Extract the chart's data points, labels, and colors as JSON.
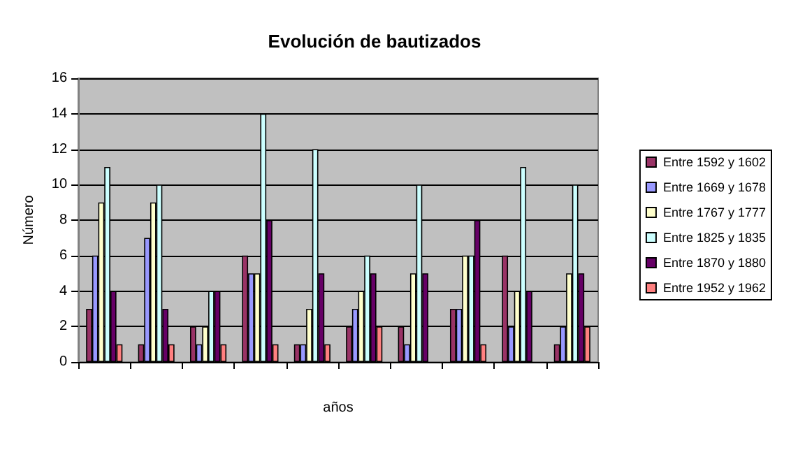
{
  "chart_data": {
    "type": "bar",
    "title": "Evolución de bautizados",
    "xlabel": "años",
    "ylabel": "Número",
    "categories": [
      null,
      null,
      null,
      null,
      null,
      null,
      null,
      null,
      null,
      null
    ],
    "series": [
      {
        "name": "Entre 1592 y 1602",
        "color": "#993366",
        "values": [
          3,
          1,
          2,
          6,
          1,
          2,
          2,
          3,
          6,
          1
        ]
      },
      {
        "name": "Entre 1669 y 1678",
        "color": "#9999ff",
        "values": [
          6,
          7,
          1,
          5,
          1,
          3,
          1,
          3,
          2,
          2
        ]
      },
      {
        "name": "Entre 1767 y 1777",
        "color": "#ffffcc",
        "values": [
          9,
          9,
          2,
          5,
          3,
          4,
          5,
          6,
          4,
          5
        ]
      },
      {
        "name": "Entre 1825 y 1835",
        "color": "#ccffff",
        "values": [
          11,
          10,
          4,
          14,
          12,
          6,
          10,
          6,
          11,
          10
        ]
      },
      {
        "name": "Entre 1870 y 1880",
        "color": "#660066",
        "values": [
          4,
          3,
          4,
          8,
          5,
          5,
          5,
          8,
          4,
          5
        ]
      },
      {
        "name": "Entre 1952 y 1962",
        "color": "#ff8080",
        "values": [
          1,
          1,
          1,
          1,
          1,
          2,
          0,
          1,
          0,
          2
        ]
      }
    ],
    "ylim": [
      0,
      16
    ],
    "yticks": [
      0,
      2,
      4,
      6,
      8,
      10,
      12,
      14,
      16
    ],
    "grid": "y",
    "legend": "right"
  }
}
